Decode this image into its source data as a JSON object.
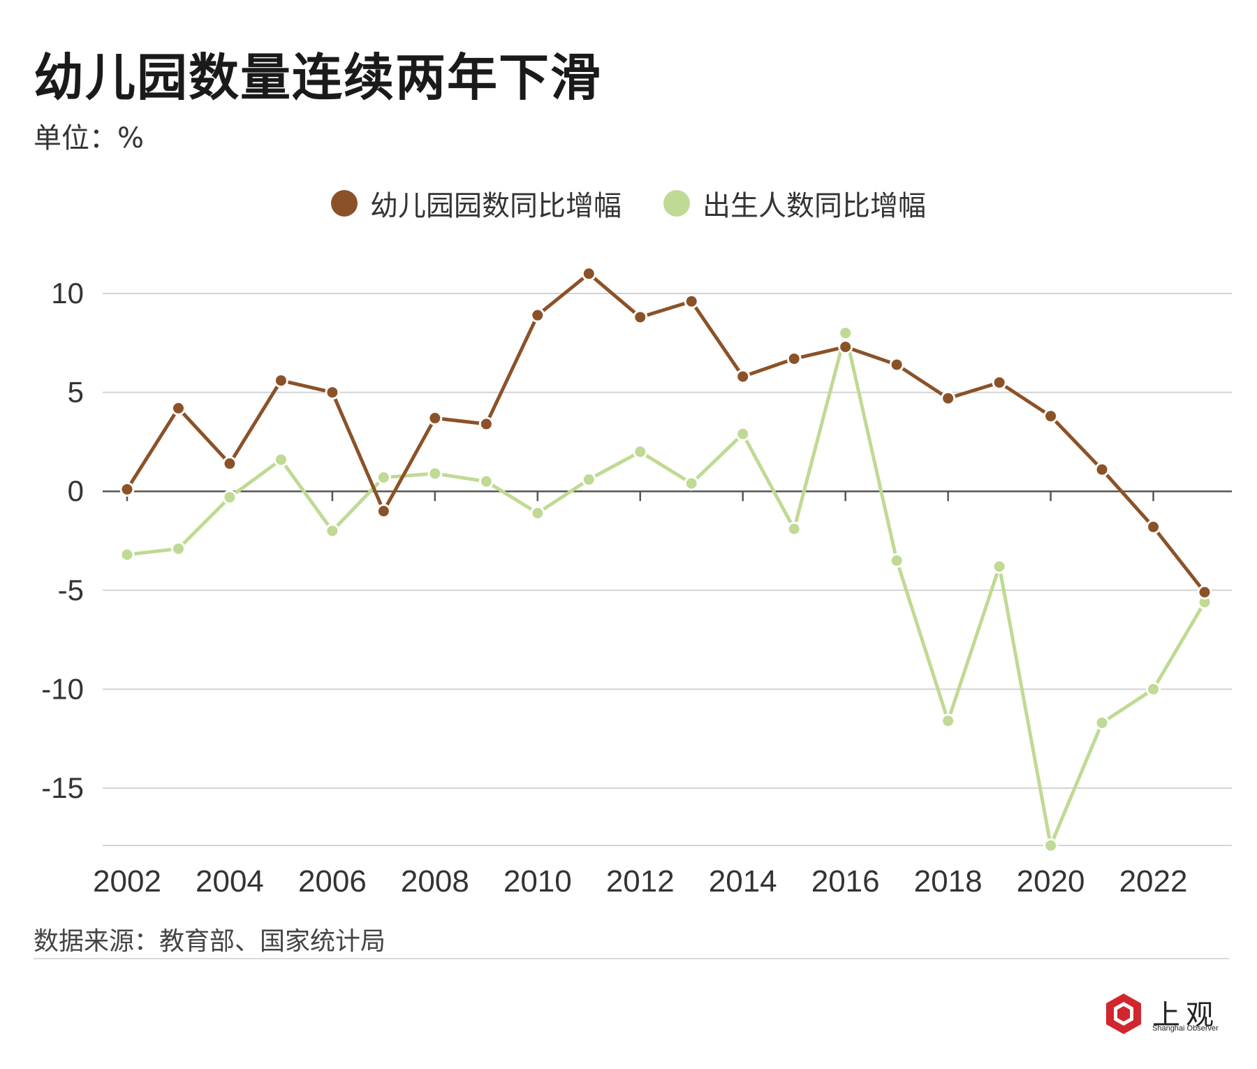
{
  "header": {
    "title": "幼儿园数量连续两年下滑",
    "unit": "单位：%"
  },
  "footer": {
    "source": "数据来源：教育部、国家统计局",
    "logo_name": "上观",
    "logo_sub": "Shanghai Observer"
  },
  "colors": {
    "kindergarten": "#8B5228",
    "births": "#BFDA94",
    "grid": "#d3d3d3",
    "zero_line": "#555555"
  },
  "chart_data": {
    "type": "line",
    "x": [
      2002,
      2003,
      2004,
      2005,
      2006,
      2007,
      2008,
      2009,
      2010,
      2011,
      2012,
      2013,
      2014,
      2015,
      2016,
      2017,
      2018,
      2019,
      2020,
      2021,
      2022,
      2023
    ],
    "series": [
      {
        "name": "幼儿园园数同比增幅",
        "color": "#8B5228",
        "values": [
          0.1,
          4.2,
          1.4,
          5.6,
          5.0,
          -1.0,
          3.7,
          3.4,
          8.9,
          11.0,
          8.8,
          9.6,
          5.8,
          6.7,
          7.3,
          6.4,
          4.7,
          5.5,
          3.8,
          1.1,
          -1.8,
          -5.1
        ]
      },
      {
        "name": "出生人数同比增幅",
        "color": "#BFDA94",
        "values": [
          -3.2,
          -2.9,
          -0.3,
          1.6,
          -2.0,
          0.7,
          0.9,
          0.5,
          -1.1,
          0.6,
          2.0,
          0.4,
          2.9,
          -1.9,
          8.0,
          -3.5,
          -11.6,
          -3.8,
          -17.9,
          -11.7,
          -10.0,
          -5.6
        ]
      }
    ],
    "ylim": [
      -18,
      10
    ],
    "yticks": [
      10,
      5,
      0,
      -5,
      -10,
      -15
    ],
    "xticks": [
      2002,
      2004,
      2006,
      2008,
      2010,
      2012,
      2014,
      2016,
      2018,
      2020,
      2022
    ],
    "xlim": [
      2002,
      2023
    ],
    "grid": true,
    "legend": "top-center"
  }
}
